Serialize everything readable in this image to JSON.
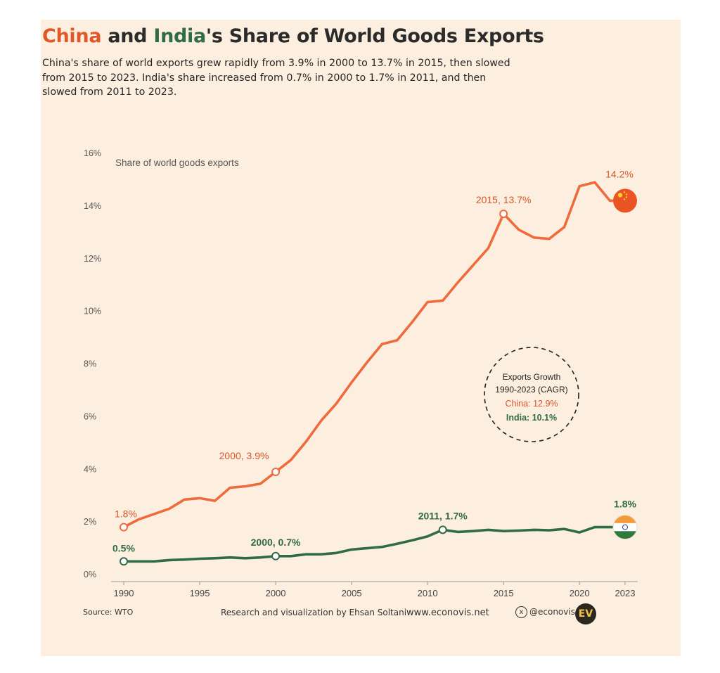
{
  "title": {
    "china": "China",
    "and": "and",
    "india": "India",
    "rest": "'s Share of World Goods Exports"
  },
  "subtitle": "China's share of world exports grew rapidly from 3.9% in 2000 to 13.7% in 2015, then slowed from 2015 to 2023. India's share increased from 0.7% in 2000 to 1.7% in 2011, and then slowed from 2011 to 2023.",
  "colors": {
    "china": "#ef6a3c",
    "india": "#2f6b47",
    "background": "#fdefdf",
    "china_text": "#d9552a"
  },
  "chart_data": {
    "type": "line",
    "ylabel": "Share of world goods exports",
    "ylim": [
      0,
      16
    ],
    "yticks": [
      "0%",
      "2%",
      "4%",
      "6%",
      "8%",
      "10%",
      "12%",
      "14%",
      "16%"
    ],
    "xticks": [
      "1990",
      "1995",
      "2000",
      "2005",
      "2010",
      "2015",
      "2020",
      "2023"
    ],
    "x": [
      1990,
      1991,
      1992,
      1993,
      1994,
      1995,
      1996,
      1997,
      1998,
      1999,
      2000,
      2001,
      2002,
      2003,
      2004,
      2005,
      2006,
      2007,
      2008,
      2009,
      2010,
      2011,
      2012,
      2013,
      2014,
      2015,
      2016,
      2017,
      2018,
      2019,
      2020,
      2021,
      2022,
      2023
    ],
    "series": [
      {
        "name": "China",
        "values": [
          1.8,
          2.1,
          2.3,
          2.5,
          2.85,
          2.9,
          2.8,
          3.3,
          3.35,
          3.45,
          3.9,
          4.35,
          5.05,
          5.85,
          6.5,
          7.3,
          8.05,
          8.75,
          8.9,
          9.6,
          10.35,
          10.4,
          11.1,
          11.75,
          12.4,
          13.7,
          13.1,
          12.8,
          12.75,
          13.2,
          14.75,
          14.9,
          14.2,
          14.2
        ]
      },
      {
        "name": "India",
        "values": [
          0.5,
          0.5,
          0.5,
          0.55,
          0.57,
          0.6,
          0.62,
          0.65,
          0.62,
          0.65,
          0.7,
          0.7,
          0.77,
          0.77,
          0.82,
          0.95,
          1.0,
          1.05,
          1.17,
          1.3,
          1.45,
          1.7,
          1.62,
          1.65,
          1.7,
          1.65,
          1.67,
          1.7,
          1.68,
          1.73,
          1.6,
          1.8,
          1.8,
          1.8
        ]
      }
    ],
    "annotations": [
      {
        "series": "China",
        "x": 1990,
        "y": 1.8,
        "text": "1.8%"
      },
      {
        "series": "China",
        "x": 2000,
        "y": 3.9,
        "text": "2000, 3.9%"
      },
      {
        "series": "China",
        "x": 2015,
        "y": 13.7,
        "text": "2015, 13.7%"
      },
      {
        "series": "China",
        "x": 2023,
        "y": 14.2,
        "text": "14.2%"
      },
      {
        "series": "India",
        "x": 1990,
        "y": 0.5,
        "text": "0.5%"
      },
      {
        "series": "India",
        "x": 2000,
        "y": 0.7,
        "text": "2000, 0.7%"
      },
      {
        "series": "India",
        "x": 2011,
        "y": 1.7,
        "text": "2011, 1.7%"
      },
      {
        "series": "India",
        "x": 2023,
        "y": 1.8,
        "text": "1.8%"
      }
    ],
    "callout": {
      "line1": "Exports Growth",
      "line2": "1990-2023 (CAGR)",
      "china": "China: 12.9%",
      "india": "India: 10.1%"
    },
    "flags": [
      {
        "series": "China",
        "icon": "china-flag-icon"
      },
      {
        "series": "India",
        "icon": "india-flag-icon"
      }
    ]
  },
  "footer": {
    "source": "Source: WTO",
    "credit": "Research and visualization by Ehsan Soltani",
    "website": "www.econovis.net",
    "x_icon": "x",
    "handle": "@econovisuals",
    "logo": "EV"
  }
}
